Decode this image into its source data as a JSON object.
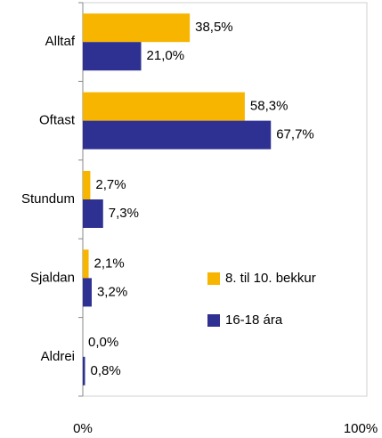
{
  "chart_data": {
    "type": "bar",
    "orientation": "horizontal",
    "categories": [
      "Alltaf",
      "Oftast",
      "Stundum",
      "Sjaldan",
      "Aldrei"
    ],
    "series": [
      {
        "name": "8. til 10. bekkur",
        "color": "#f7b500",
        "values": [
          38.5,
          58.3,
          2.7,
          2.1,
          0.0
        ],
        "value_labels": [
          "38,5%",
          "58,3%",
          "2,7%",
          "2,1%",
          "0,0%"
        ]
      },
      {
        "name": "16-18 ára",
        "color": "#2e3192",
        "values": [
          21.0,
          67.7,
          7.3,
          3.2,
          0.8
        ],
        "value_labels": [
          "21,0%",
          "67,7%",
          "7,3%",
          "3,2%",
          "0,8%"
        ]
      }
    ],
    "xlim": [
      0,
      100
    ],
    "xticks": [
      {
        "value": 0,
        "label": "0%"
      },
      {
        "value": 100,
        "label": "100%"
      }
    ],
    "legend": "right"
  }
}
